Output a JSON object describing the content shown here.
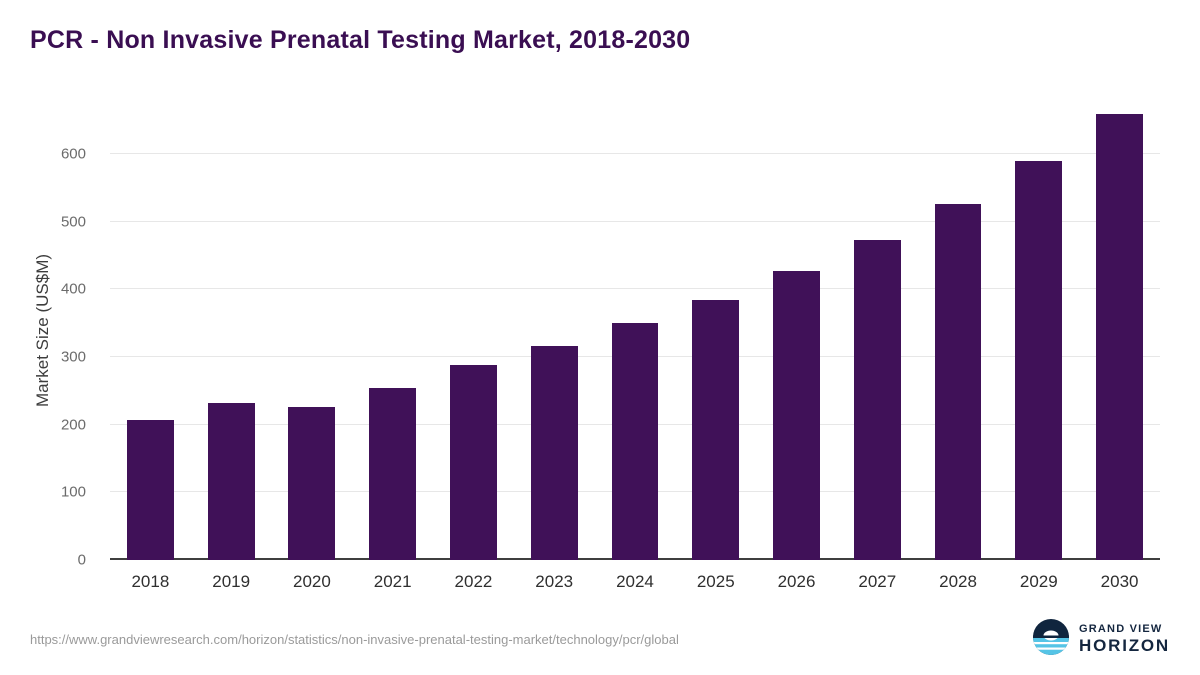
{
  "title": "PCR - Non Invasive Prenatal Testing Market, 2018-2030",
  "footer": {
    "source_url": "https://www.grandviewresearch.com/horizon/statistics/non-invasive-prenatal-testing-market/technology/pcr/global",
    "logo": {
      "line1": "GRAND VIEW",
      "line2": "HORIZON"
    }
  },
  "chart_data": {
    "type": "bar",
    "title": "PCR - Non Invasive Prenatal Testing Market, 2018-2030",
    "categories": [
      "2018",
      "2019",
      "2020",
      "2021",
      "2022",
      "2023",
      "2024",
      "2025",
      "2026",
      "2027",
      "2028",
      "2029",
      "2030"
    ],
    "values": [
      207,
      232,
      226,
      254,
      289,
      317,
      350,
      385,
      427,
      473,
      527,
      590,
      660
    ],
    "xlabel": "",
    "ylabel": "Market Size (US$M)",
    "ylim": [
      0,
      680
    ],
    "yticks": [
      0,
      100,
      200,
      300,
      400,
      500,
      600
    ],
    "grid": true,
    "legend_position": "none",
    "bar_color": "#401158"
  }
}
